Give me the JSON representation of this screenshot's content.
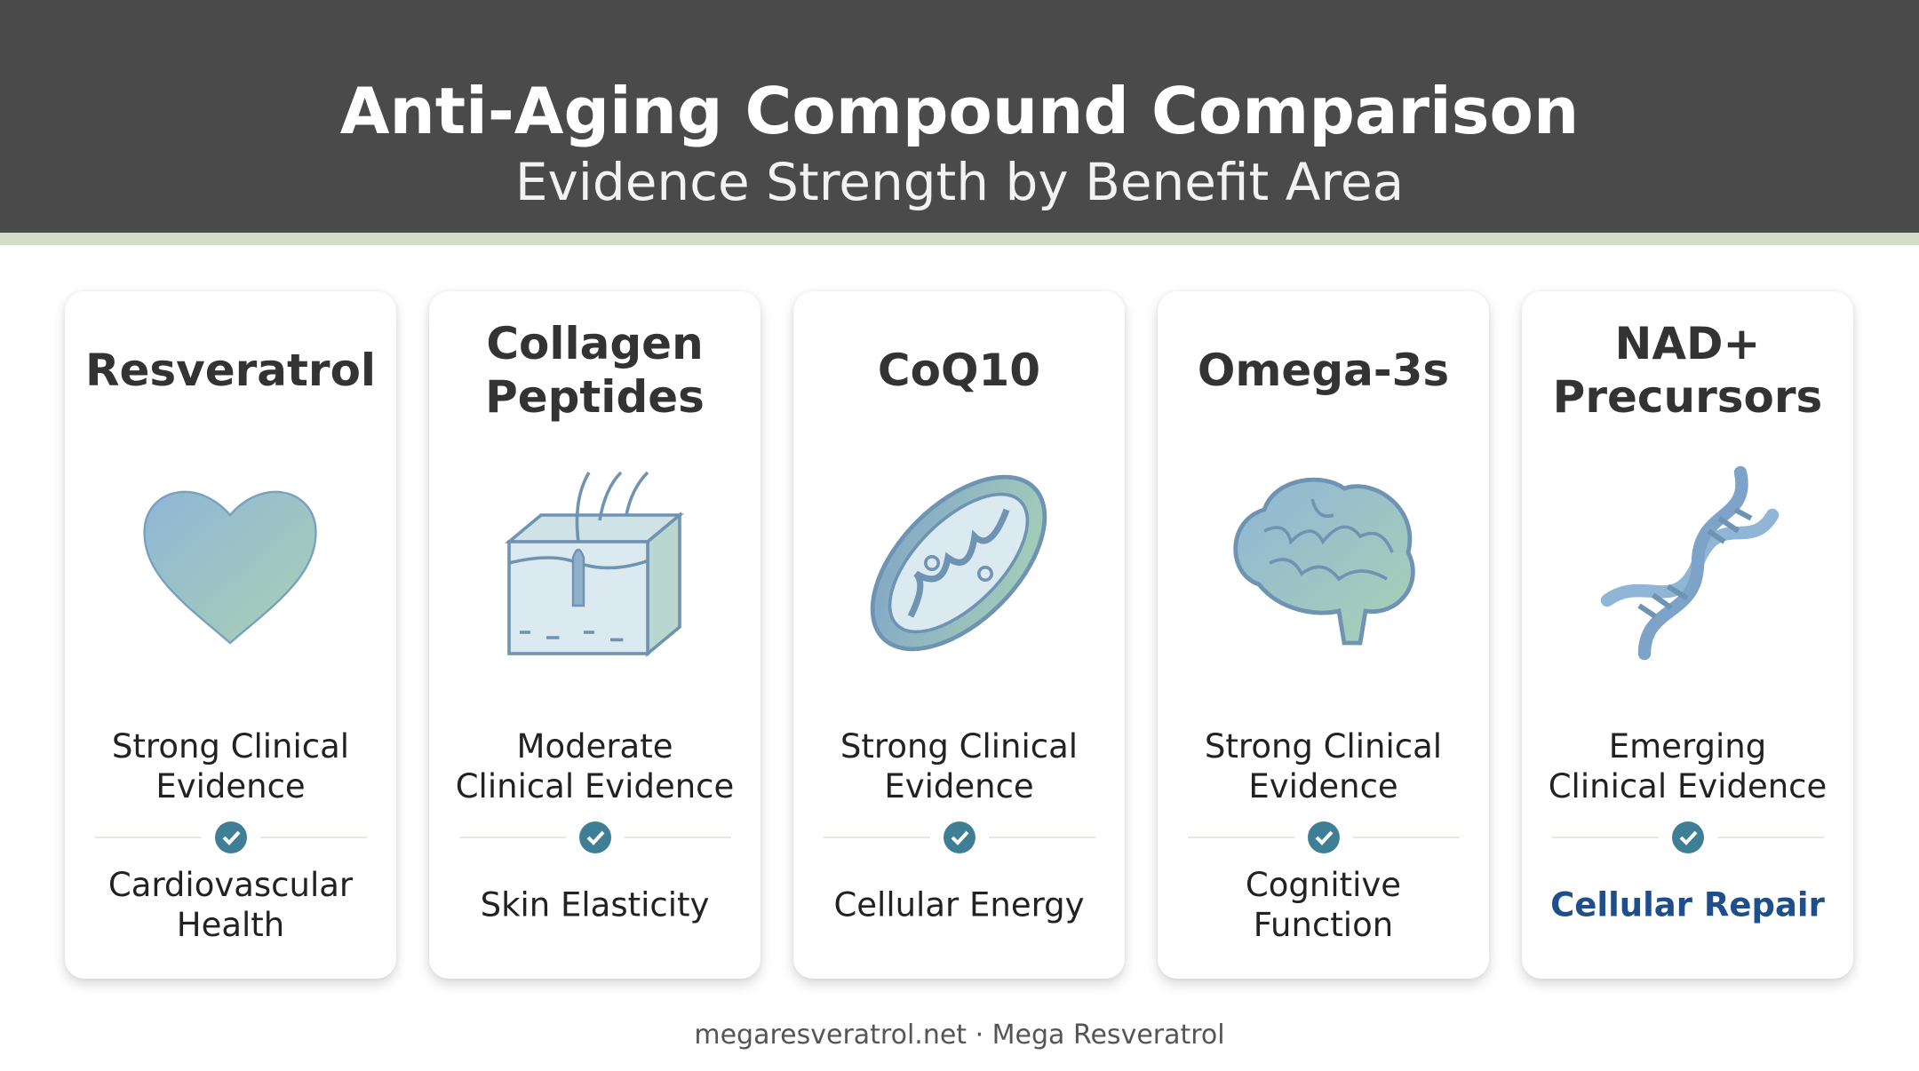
{
  "header": {
    "title": "Anti-Aging Compound Comparison",
    "subtitle": "Evidence Strength by Benefit Area"
  },
  "cards": [
    {
      "name": [
        "Resveratrol"
      ],
      "evidence": [
        "Strong Clinical",
        "Evidence"
      ],
      "benefit": [
        "Cardiovascular",
        "Health"
      ],
      "highlighted": false
    },
    {
      "name": [
        "Collagen",
        "Peptides"
      ],
      "evidence": [
        "Moderate",
        "Clinical Evidence"
      ],
      "benefit": [
        "Skin Elasticity"
      ],
      "highlighted": false
    },
    {
      "name": [
        "CoQ10"
      ],
      "evidence": [
        "Strong Clinical",
        "Evidence"
      ],
      "benefit": [
        "Cellular Energy"
      ],
      "highlighted": false
    },
    {
      "name": [
        "Omega-3s"
      ],
      "evidence": [
        "Strong Clinical",
        "Evidence"
      ],
      "benefit": [
        "Cognitive",
        "Function"
      ],
      "highlighted": false
    },
    {
      "name": [
        "NAD+",
        "Precursors"
      ],
      "evidence": [
        "Emerging",
        "Clinical Evidence"
      ],
      "benefit": [
        "Cellular Repair"
      ],
      "highlighted": true
    }
  ],
  "footer": "megaresveratrol.net · Mega Resveratrol"
}
